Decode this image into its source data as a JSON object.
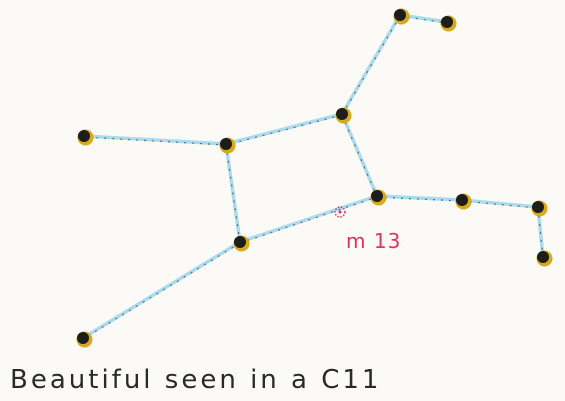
{
  "label": "m 13",
  "caption": "Beautiful seen in a C11"
}
